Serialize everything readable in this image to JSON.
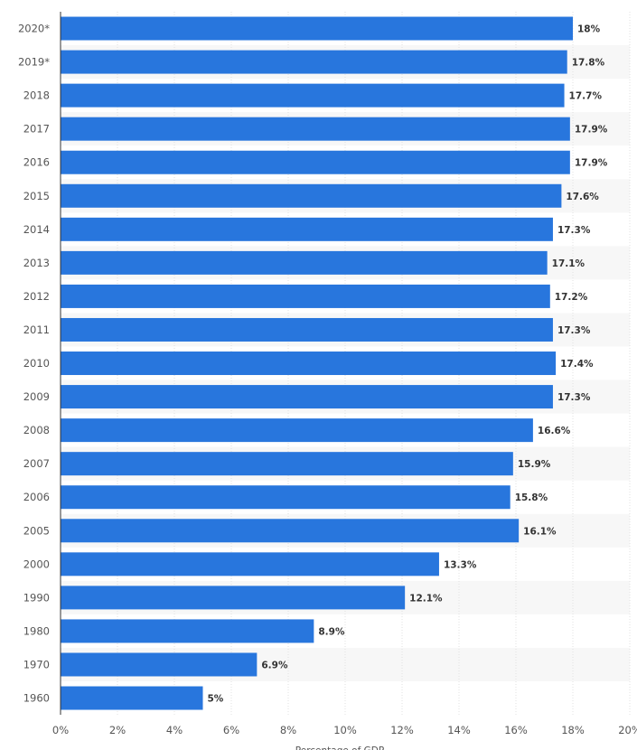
{
  "chart_data": {
    "type": "bar",
    "orientation": "horizontal",
    "categories": [
      "2020*",
      "2019*",
      "2018",
      "2017",
      "2016",
      "2015",
      "2014",
      "2013",
      "2012",
      "2011",
      "2010",
      "2009",
      "2008",
      "2007",
      "2006",
      "2005",
      "2000",
      "1990",
      "1980",
      "1970",
      "1960"
    ],
    "values": [
      18,
      17.8,
      17.7,
      17.9,
      17.9,
      17.6,
      17.3,
      17.1,
      17.2,
      17.3,
      17.4,
      17.3,
      16.6,
      15.9,
      15.8,
      16.1,
      13.3,
      12.1,
      8.9,
      6.9,
      5
    ],
    "value_labels": [
      "18%",
      "17.8%",
      "17.7%",
      "17.9%",
      "17.9%",
      "17.6%",
      "17.3%",
      "17.1%",
      "17.2%",
      "17.3%",
      "17.4%",
      "17.3%",
      "16.6%",
      "15.9%",
      "15.8%",
      "16.1%",
      "13.3%",
      "12.1%",
      "8.9%",
      "6.9%",
      "5%"
    ],
    "x_ticks": [
      "0%",
      "2%",
      "4%",
      "6%",
      "8%",
      "10%",
      "12%",
      "14%",
      "16%",
      "18%",
      "20%"
    ],
    "xlim": [
      0,
      20
    ],
    "xlabel": "Percentage of GDP",
    "title": "",
    "grid": true,
    "bar_color": "#2876dd",
    "band_color": "#f7f7f7",
    "grid_color": "#e0e0e0",
    "axis_color": "#333333"
  }
}
